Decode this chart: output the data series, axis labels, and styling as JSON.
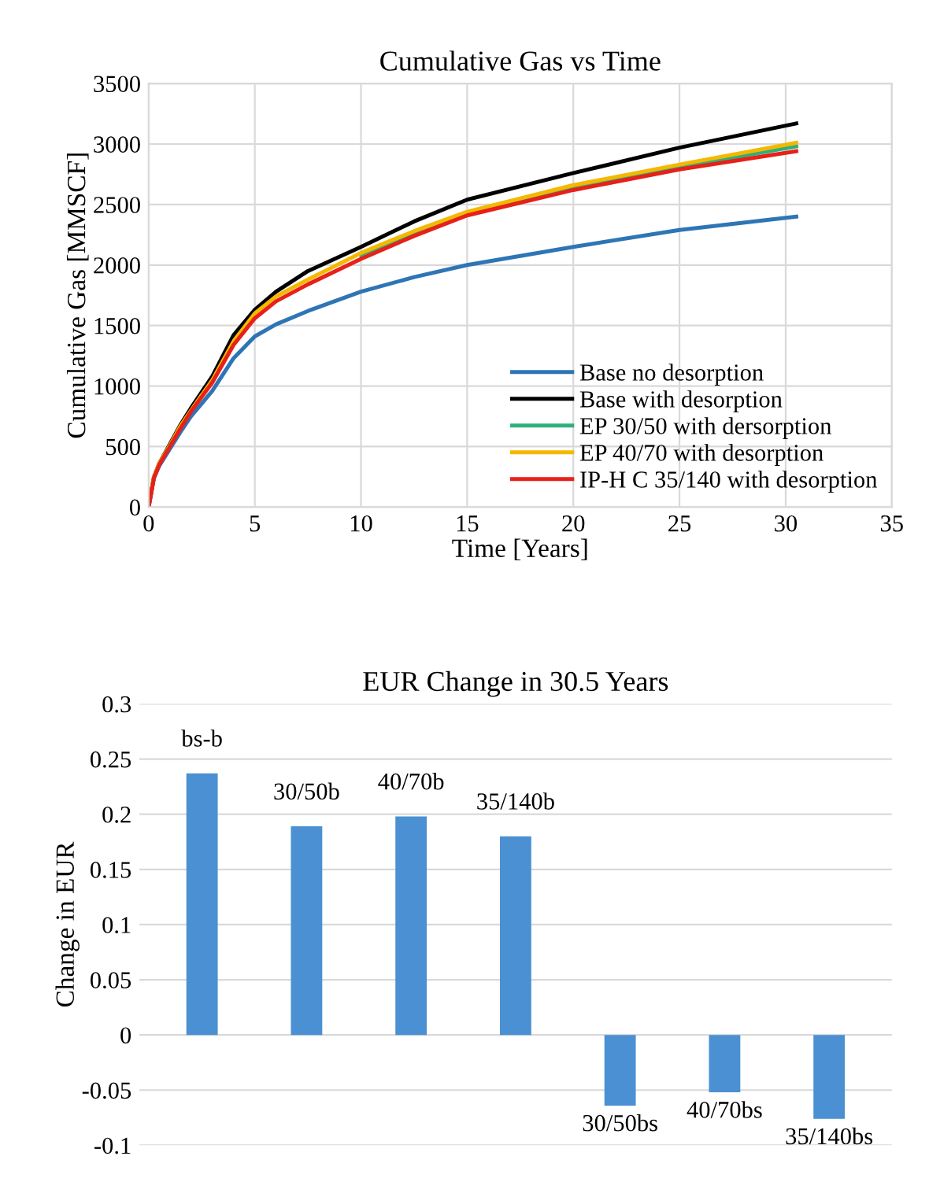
{
  "chart_data": [
    {
      "type": "line",
      "title": "Cumulative Gas vs Time",
      "xlabel": "Time [Years]",
      "ylabel": "Cumulative Gas [MMSCF]",
      "x": [
        0,
        0.25,
        0.5,
        1,
        1.5,
        2,
        3,
        4,
        5,
        6,
        7.5,
        10,
        12.5,
        15,
        20,
        25,
        30.5
      ],
      "series": [
        {
          "name": "Base no desorption",
          "color": "#2e75b6",
          "values": [
            0,
            240,
            340,
            480,
            620,
            750,
            960,
            1230,
            1410,
            1510,
            1620,
            1780,
            1900,
            2000,
            2150,
            2290,
            2400
          ]
        },
        {
          "name": "Base with desorption",
          "color": "#000000",
          "values": [
            0,
            250,
            360,
            520,
            680,
            820,
            1080,
            1420,
            1630,
            1780,
            1950,
            2150,
            2360,
            2540,
            2760,
            2970,
            3170
          ]
        },
        {
          "name": "EP 30/50 with dersorption",
          "color": "#2eb07a",
          "values": [
            null,
            null,
            null,
            null,
            null,
            null,
            null,
            null,
            null,
            null,
            null,
            2080,
            2260,
            2420,
            2640,
            2810,
            2980
          ]
        },
        {
          "name": "EP 40/70 with desorption",
          "color": "#f5b800",
          "values": [
            0,
            250,
            360,
            510,
            670,
            800,
            1050,
            1370,
            1600,
            1740,
            1880,
            2100,
            2280,
            2440,
            2660,
            2830,
            3010
          ]
        },
        {
          "name": "IP-H C 35/140 with desorption",
          "color": "#e8201a",
          "values": [
            0,
            240,
            350,
            500,
            650,
            790,
            1030,
            1340,
            1560,
            1700,
            1840,
            2050,
            2240,
            2410,
            2620,
            2790,
            2940
          ]
        }
      ],
      "xlim": [
        0,
        35
      ],
      "xticks": [
        0,
        5,
        10,
        15,
        20,
        25,
        30,
        35
      ],
      "ylim": [
        0,
        3500
      ],
      "yticks": [
        0,
        500,
        1000,
        1500,
        2000,
        2500,
        3000,
        3500
      ],
      "grid": true,
      "legend": "bottom right",
      "marker": "none",
      "line_style": "solid"
    },
    {
      "type": "bar",
      "title": "EUR Change in 30.5 Years",
      "ylabel": "Change in EUR",
      "categories": [
        "bs-b",
        "30/50b",
        "40/70b",
        "35/140b",
        "30/50bs",
        "40/70bs",
        "35/140bs"
      ],
      "values": [
        0.237,
        0.189,
        0.198,
        0.18,
        -0.064,
        -0.052,
        -0.076
      ],
      "color": "#4a90d2",
      "ylim": [
        -0.1,
        0.3
      ],
      "yticks": [
        -0.1,
        -0.05,
        0,
        0.05,
        0.1,
        0.15,
        0.2,
        0.25,
        0.3
      ],
      "grid": "y",
      "tick_labels": "y"
    }
  ]
}
